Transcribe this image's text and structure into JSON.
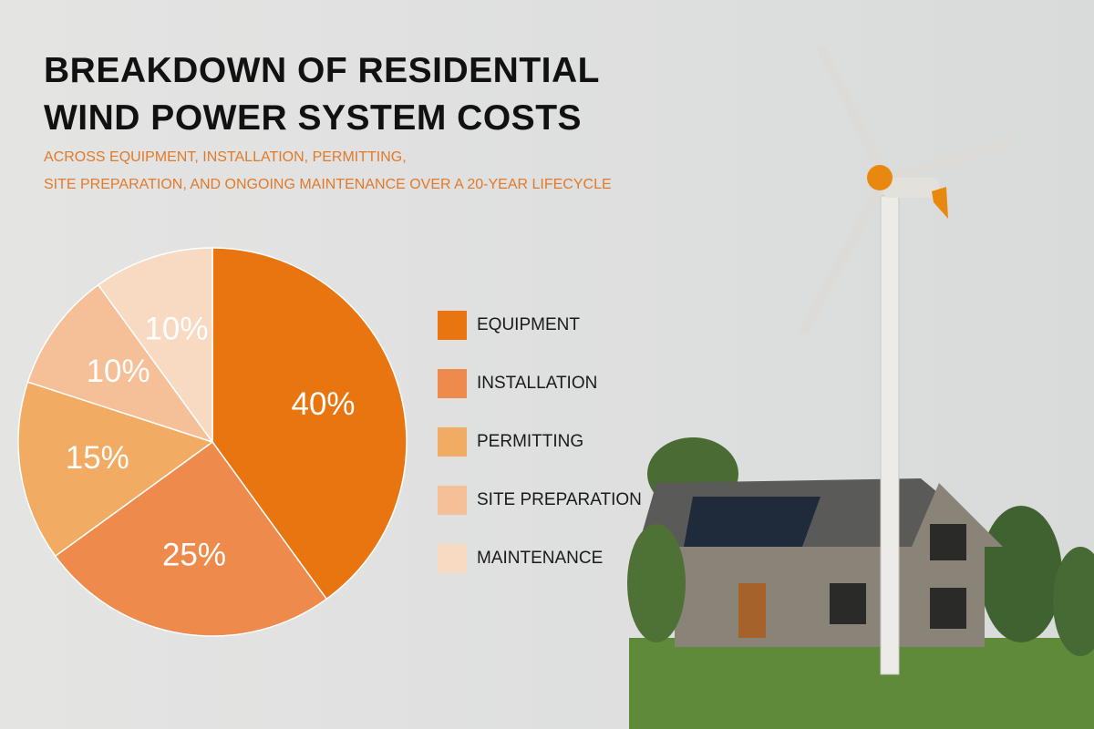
{
  "chart_data": {
    "type": "pie",
    "title": [
      "BREAKDOWN OF RESIDENTIAL",
      "WIND POWER SYSTEM COSTS"
    ],
    "subtitle": [
      "ACROSS EQUIPMENT, INSTALLATION, PERMITTING,",
      "SITE PREPARATION, AND ONGOING MAINTENANCE OVER A 20-YEAR LIFECYCLE"
    ],
    "categories": [
      "EQUIPMENT",
      "INSTALLATION",
      "PERMITTING",
      "SITE PREPARATION",
      "MAINTENANCE"
    ],
    "values": [
      40,
      25,
      15,
      10,
      10
    ],
    "value_labels": [
      "40%",
      "25%",
      "15%",
      "10%",
      "10%"
    ],
    "colors": [
      "#e8750f",
      "#ee8a4c",
      "#f2ab63",
      "#f5bf98",
      "#f8d9c1"
    ]
  }
}
